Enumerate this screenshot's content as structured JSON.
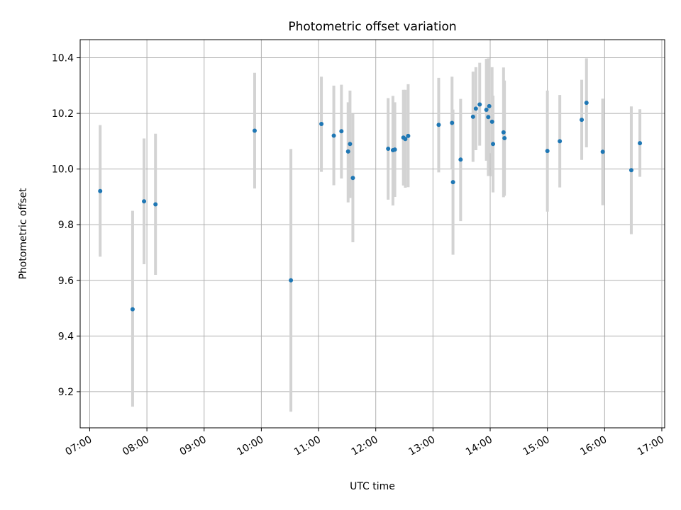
{
  "chart_data": {
    "type": "scatter",
    "title": "Photometric offset variation",
    "xlabel": "UTC time",
    "ylabel": "Photometric offset",
    "grid": true,
    "xlim": [
      "06:50",
      "17:03"
    ],
    "ylim": [
      9.07,
      10.465
    ],
    "x_tick_labels": [
      "07:00",
      "08:00",
      "09:00",
      "10:00",
      "11:00",
      "12:00",
      "13:00",
      "14:00",
      "15:00",
      "16:00",
      "17:00"
    ],
    "y_tick_labels": [
      "9.2",
      "9.4",
      "9.6",
      "9.8",
      "10.0",
      "10.2",
      "10.4"
    ],
    "colors": {
      "points": "#1f77b4",
      "errorbars": "#d3d3d3",
      "grid": "#b0b0b0"
    },
    "points": [
      {
        "x": "07:11",
        "y": 9.921,
        "lo": 9.685,
        "hi": 10.158
      },
      {
        "x": "07:45",
        "y": 9.496,
        "lo": 9.146,
        "hi": 9.85
      },
      {
        "x": "07:57",
        "y": 9.884,
        "lo": 9.658,
        "hi": 10.11
      },
      {
        "x": "08:09",
        "y": 9.873,
        "lo": 9.62,
        "hi": 10.127
      },
      {
        "x": "09:53",
        "y": 10.138,
        "lo": 9.93,
        "hi": 10.346
      },
      {
        "x": "10:31",
        "y": 9.6,
        "lo": 9.128,
        "hi": 10.072
      },
      {
        "x": "11:03",
        "y": 10.162,
        "lo": 9.99,
        "hi": 10.332
      },
      {
        "x": "11:16",
        "y": 10.12,
        "lo": 9.942,
        "hi": 10.3
      },
      {
        "x": "11:24",
        "y": 10.136,
        "lo": 9.966,
        "hi": 10.303
      },
      {
        "x": "11:31",
        "y": 10.063,
        "lo": 9.88,
        "hi": 10.24
      },
      {
        "x": "11:33",
        "y": 10.09,
        "lo": 9.896,
        "hi": 10.282
      },
      {
        "x": "11:36",
        "y": 9.968,
        "lo": 9.737,
        "hi": 10.198
      },
      {
        "x": "12:13",
        "y": 10.073,
        "lo": 9.89,
        "hi": 10.255
      },
      {
        "x": "12:18",
        "y": 10.068,
        "lo": 9.869,
        "hi": 10.263
      },
      {
        "x": "12:20",
        "y": 10.07,
        "lo": 9.9,
        "hi": 10.24
      },
      {
        "x": "12:29",
        "y": 10.113,
        "lo": 9.941,
        "hi": 10.285
      },
      {
        "x": "12:31",
        "y": 10.108,
        "lo": 9.933,
        "hi": 10.285
      },
      {
        "x": "12:34",
        "y": 10.119,
        "lo": 9.935,
        "hi": 10.305
      },
      {
        "x": "13:06",
        "y": 10.159,
        "lo": 9.988,
        "hi": 10.328
      },
      {
        "x": "13:20",
        "y": 10.166,
        "lo": 10.0,
        "hi": 10.332
      },
      {
        "x": "13:21",
        "y": 9.953,
        "lo": 9.692,
        "hi": 10.214
      },
      {
        "x": "13:29",
        "y": 10.034,
        "lo": 9.813,
        "hi": 10.252
      },
      {
        "x": "13:42",
        "y": 10.188,
        "lo": 10.026,
        "hi": 10.35
      },
      {
        "x": "13:45",
        "y": 10.217,
        "lo": 10.068,
        "hi": 10.366
      },
      {
        "x": "13:49",
        "y": 10.232,
        "lo": 10.084,
        "hi": 10.382
      },
      {
        "x": "13:56",
        "y": 10.213,
        "lo": 10.03,
        "hi": 10.396
      },
      {
        "x": "13:58",
        "y": 10.187,
        "lo": 9.975,
        "hi": 10.398
      },
      {
        "x": "13:59",
        "y": 10.226,
        "lo": 10.057,
        "hi": 10.395
      },
      {
        "x": "14:02",
        "y": 10.17,
        "lo": 9.974,
        "hi": 10.366
      },
      {
        "x": "14:03",
        "y": 10.09,
        "lo": 9.916,
        "hi": 10.264
      },
      {
        "x": "14:14",
        "y": 10.132,
        "lo": 9.899,
        "hi": 10.365
      },
      {
        "x": "14:15",
        "y": 10.111,
        "lo": 9.904,
        "hi": 10.318
      },
      {
        "x": "15:00",
        "y": 10.065,
        "lo": 9.847,
        "hi": 10.282
      },
      {
        "x": "15:13",
        "y": 10.1,
        "lo": 9.934,
        "hi": 10.266
      },
      {
        "x": "15:36",
        "y": 10.177,
        "lo": 10.033,
        "hi": 10.321
      },
      {
        "x": "15:41",
        "y": 10.238,
        "lo": 10.078,
        "hi": 10.398
      },
      {
        "x": "15:58",
        "y": 10.062,
        "lo": 9.87,
        "hi": 10.253
      },
      {
        "x": "16:28",
        "y": 9.996,
        "lo": 9.766,
        "hi": 10.225
      },
      {
        "x": "16:37",
        "y": 10.093,
        "lo": 9.972,
        "hi": 10.215
      }
    ]
  }
}
